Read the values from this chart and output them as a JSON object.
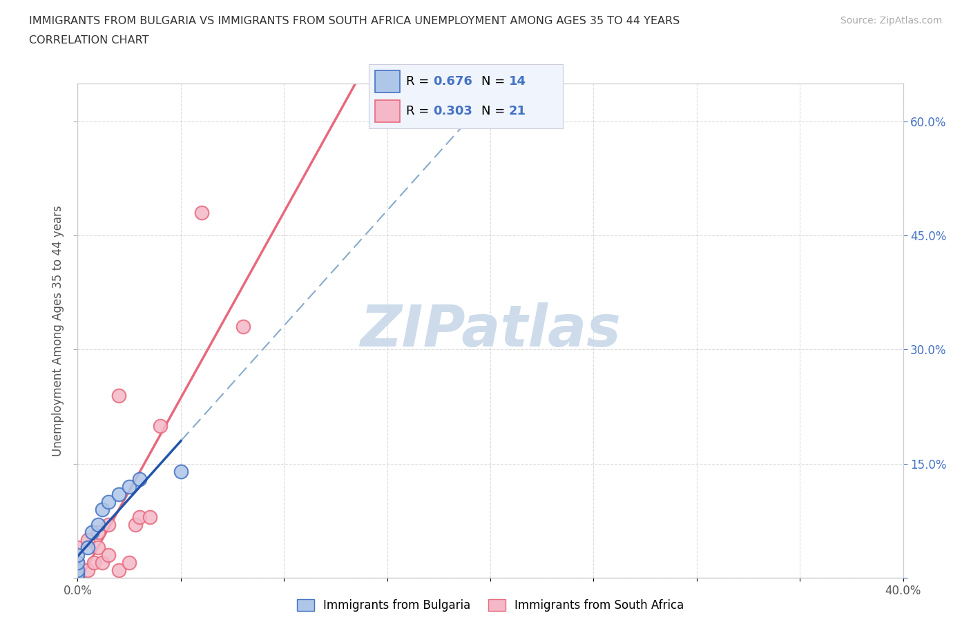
{
  "title_line1": "IMMIGRANTS FROM BULGARIA VS IMMIGRANTS FROM SOUTH AFRICA UNEMPLOYMENT AMONG AGES 35 TO 44 YEARS",
  "title_line2": "CORRELATION CHART",
  "source_text": "Source: ZipAtlas.com",
  "ylabel": "Unemployment Among Ages 35 to 44 years",
  "xlim": [
    0.0,
    0.4
  ],
  "ylim": [
    0.0,
    0.65
  ],
  "x_ticks": [
    0.0,
    0.05,
    0.1,
    0.15,
    0.2,
    0.25,
    0.3,
    0.35,
    0.4
  ],
  "x_tick_labels_show": [
    "0.0%",
    "",
    "",
    "",
    "",
    "",
    "",
    "",
    "40.0%"
  ],
  "y_ticks_right": [
    0.0,
    0.15,
    0.3,
    0.45,
    0.6
  ],
  "y_tick_labels_right": [
    "",
    "15.0%",
    "30.0%",
    "45.0%",
    "60.0%"
  ],
  "bulgaria_color": "#aec6e8",
  "bulgaria_edge_color": "#4472c4",
  "south_africa_color": "#f4b8c8",
  "south_africa_edge_color": "#e8697d",
  "bulgaria_solid_line_color": "#2255aa",
  "bulgaria_dashed_line_color": "#88aacc",
  "south_africa_line_color": "#e8697d",
  "grid_color": "#cccccc",
  "background_color": "#ffffff",
  "watermark_color": "#c8d8e8",
  "right_axis_color": "#4472c4",
  "R_bulgaria": 0.676,
  "N_bulgaria": 14,
  "R_south_africa": 0.303,
  "N_south_africa": 21,
  "bulgaria_x": [
    0.0,
    0.0,
    0.0,
    0.0,
    0.0,
    0.005,
    0.007,
    0.01,
    0.012,
    0.015,
    0.02,
    0.025,
    0.03,
    0.05
  ],
  "bulgaria_y": [
    0.0,
    0.005,
    0.01,
    0.02,
    0.03,
    0.04,
    0.06,
    0.07,
    0.09,
    0.1,
    0.11,
    0.12,
    0.13,
    0.14
  ],
  "south_africa_x": [
    0.0,
    0.0,
    0.0,
    0.0,
    0.005,
    0.005,
    0.008,
    0.01,
    0.01,
    0.012,
    0.015,
    0.015,
    0.02,
    0.02,
    0.025,
    0.028,
    0.03,
    0.035,
    0.04,
    0.06,
    0.08
  ],
  "south_africa_y": [
    0.0,
    0.01,
    0.02,
    0.04,
    0.01,
    0.05,
    0.02,
    0.04,
    0.06,
    0.02,
    0.03,
    0.07,
    0.01,
    0.24,
    0.02,
    0.07,
    0.08,
    0.08,
    0.2,
    0.48,
    0.33
  ],
  "legend_box_facecolor": "#f0f4fc",
  "legend_box_edgecolor": "#ccccdd",
  "legend_R_color": "#000000",
  "legend_val_color": "#4472c4",
  "bottom_legend_label_bulgaria": "Immigrants from Bulgaria",
  "bottom_legend_label_south_africa": "Immigrants from South Africa"
}
